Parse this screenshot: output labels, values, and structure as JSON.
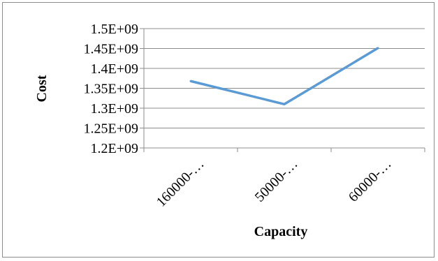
{
  "chart_data": {
    "type": "line",
    "categories": [
      "160000-…",
      "50000-…",
      "60000-…"
    ],
    "series": [
      {
        "values": [
          1368000000,
          1310000000,
          1451000000
        ]
      }
    ],
    "xlabel": "Capacity",
    "ylabel": "Cost",
    "ylim": [
      1200000000,
      1500000000
    ],
    "yticks": [
      1200000000,
      1250000000,
      1300000000,
      1350000000,
      1400000000,
      1450000000,
      1500000000
    ],
    "ytick_labels": [
      "1.2E+09",
      "1.25E+09",
      "1.3E+09",
      "1.35E+09",
      "1.4E+09",
      "1.45E+09",
      "1.5E+09"
    ],
    "grid": true,
    "legend": "none",
    "line_color": "#5b9bd5",
    "grid_color": "#8c8c8c"
  }
}
